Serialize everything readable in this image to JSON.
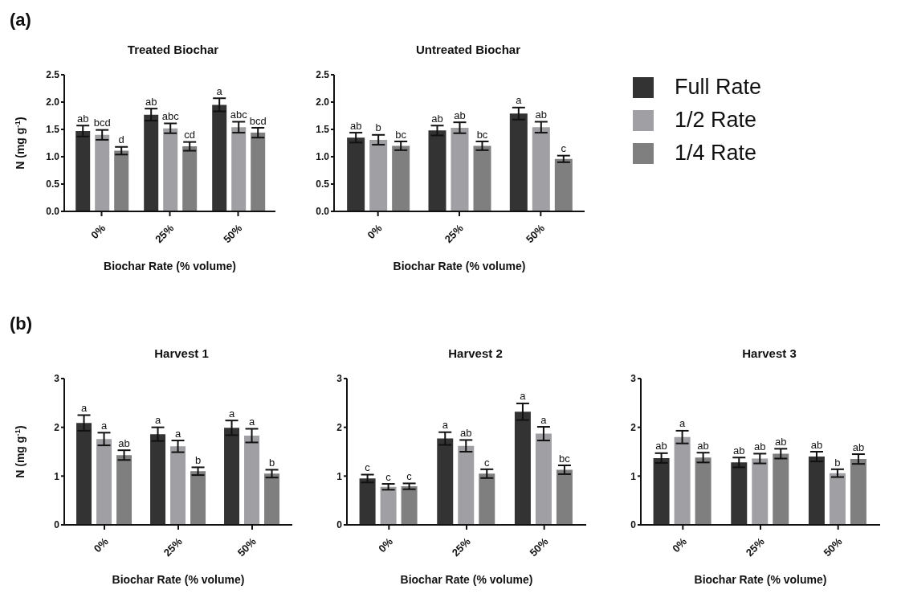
{
  "chart_data": [
    {
      "type": "bar",
      "title": "Treated Biochar",
      "annotations": [
        "(a)"
      ],
      "xlabel": "Biochar Rate  (% volume)",
      "ylabel": "N (mg g$^{-1}$)",
      "categories": [
        "0%",
        "25%",
        "50%"
      ],
      "ylim": [
        0,
        2.5
      ],
      "yticks": [
        {
          "value": 0,
          "label": "0.0"
        },
        0.5,
        {
          "value": 1,
          "label": "1.0"
        },
        1.5,
        {
          "value": 2,
          "label": "2.0"
        },
        2.5
      ],
      "grid": false,
      "legend": false,
      "series": [
        {
          "color": "#333333",
          "values": [
            1.47,
            1.77,
            1.95
          ],
          "errors": [
            0.1,
            0.11,
            0.12
          ],
          "value_labels": [
            "ab",
            "ab",
            "a"
          ]
        },
        {
          "color": "#a0a0a4",
          "values": [
            1.4,
            1.52,
            1.54
          ],
          "errors": [
            0.09,
            0.09,
            0.1
          ],
          "value_labels": [
            "bcd",
            "abc",
            "abc"
          ]
        },
        {
          "color": "#7f7f7f",
          "values": [
            1.11,
            1.19,
            1.44
          ],
          "errors": [
            0.07,
            0.08,
            0.09
          ],
          "value_labels": [
            "d",
            "cd",
            "bcd"
          ]
        }
      ]
    },
    {
      "type": "bar",
      "title": "Untreated Biochar",
      "xlabel": "Biochar Rate  (% volume)",
      "categories": [
        "0%",
        "25%",
        "50%"
      ],
      "ylim": [
        0,
        2.5
      ],
      "yticks": [
        {
          "value": 0,
          "label": "0.0"
        },
        0.5,
        {
          "value": 1,
          "label": "1.0"
        },
        1.5,
        {
          "value": 2,
          "label": "2.0"
        },
        2.5
      ],
      "grid": false,
      "legend": "right",
      "series": [
        {
          "name": "Full Rate",
          "color": "#333333",
          "values": [
            1.35,
            1.48,
            1.79
          ],
          "errors": [
            0.09,
            0.09,
            0.11
          ],
          "value_labels": [
            "ab",
            "ab",
            "a"
          ]
        },
        {
          "name": "1/2 Rate",
          "color": "#a0a0a4",
          "values": [
            1.31,
            1.53,
            1.54
          ],
          "errors": [
            0.09,
            0.1,
            0.1
          ],
          "value_labels": [
            "b",
            "ab",
            "ab"
          ]
        },
        {
          "name": "1/4 Rate",
          "color": "#7f7f7f",
          "values": [
            1.2,
            1.2,
            0.96
          ],
          "errors": [
            0.08,
            0.08,
            0.06
          ],
          "value_labels": [
            "bc",
            "bc",
            "c"
          ]
        }
      ]
    },
    {
      "type": "bar",
      "title": "Harvest 1",
      "annotations": [
        "(b)"
      ],
      "xlabel": "Biochar Rate  (% volume)",
      "ylabel": "N (mg g$^{-1}$)",
      "categories": [
        "0%",
        "25%",
        "50%"
      ],
      "ylim": [
        0,
        3
      ],
      "yticks": [
        0,
        1,
        2,
        3
      ],
      "grid": false,
      "legend": false,
      "series": [
        {
          "color": "#333333",
          "values": [
            2.09,
            1.86,
            1.99
          ],
          "errors": [
            0.16,
            0.14,
            0.15
          ],
          "value_labels": [
            "a",
            "a",
            "a"
          ]
        },
        {
          "color": "#a0a0a4",
          "values": [
            1.76,
            1.61,
            1.83
          ],
          "errors": [
            0.13,
            0.12,
            0.14
          ],
          "value_labels": [
            "a",
            "a",
            "a"
          ]
        },
        {
          "color": "#7f7f7f",
          "values": [
            1.43,
            1.1,
            1.05
          ],
          "errors": [
            0.1,
            0.08,
            0.08
          ],
          "value_labels": [
            "ab",
            "b",
            "b"
          ]
        }
      ]
    },
    {
      "type": "bar",
      "title": "Harvest 2",
      "xlabel": "Biochar Rate  (% volume)",
      "categories": [
        "0%",
        "25%",
        "50%"
      ],
      "ylim": [
        0,
        3
      ],
      "yticks": [
        0,
        1,
        2,
        3
      ],
      "grid": false,
      "legend": false,
      "series": [
        {
          "color": "#333333",
          "values": [
            0.95,
            1.77,
            2.32
          ],
          "errors": [
            0.08,
            0.13,
            0.17
          ],
          "value_labels": [
            "c",
            "a",
            "a"
          ]
        },
        {
          "color": "#a0a0a4",
          "values": [
            0.78,
            1.62,
            1.87
          ],
          "errors": [
            0.06,
            0.12,
            0.14
          ],
          "value_labels": [
            "c",
            "ab",
            "a"
          ]
        },
        {
          "color": "#7f7f7f",
          "values": [
            0.79,
            1.05,
            1.13
          ],
          "errors": [
            0.06,
            0.09,
            0.09
          ],
          "value_labels": [
            "c",
            "c",
            "bc"
          ]
        }
      ]
    },
    {
      "type": "bar",
      "title": "Harvest 3",
      "xlabel": "Biochar Rate  (% volume)",
      "categories": [
        "0%",
        "25%",
        "50%"
      ],
      "ylim": [
        0,
        3
      ],
      "yticks": [
        0,
        1,
        2,
        3
      ],
      "grid": false,
      "legend": false,
      "series": [
        {
          "color": "#333333",
          "values": [
            1.37,
            1.28,
            1.4
          ],
          "errors": [
            0.1,
            0.1,
            0.1
          ],
          "value_labels": [
            "ab",
            "ab",
            "ab"
          ]
        },
        {
          "color": "#a0a0a4",
          "values": [
            1.8,
            1.36,
            1.06
          ],
          "errors": [
            0.13,
            0.1,
            0.08
          ],
          "value_labels": [
            "a",
            "ab",
            "b"
          ]
        },
        {
          "color": "#7f7f7f",
          "values": [
            1.38,
            1.46,
            1.35
          ],
          "errors": [
            0.1,
            0.1,
            0.1
          ],
          "value_labels": [
            "ab",
            "ab",
            "ab"
          ]
        }
      ]
    }
  ]
}
